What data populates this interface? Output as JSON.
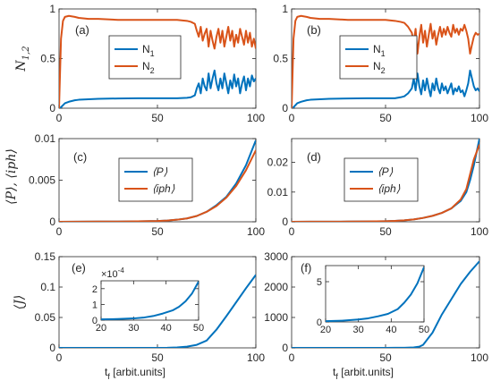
{
  "colors": {
    "blue": "#0072BD",
    "orange": "#D95319",
    "axis": "#262626"
  },
  "chart_data": [
    {
      "id": "a",
      "panel_label": "(a)",
      "type": "line",
      "ylabel": "N1,2",
      "ylabel_main": "N",
      "ylabel_sub": "1,2",
      "xlim": [
        0,
        100
      ],
      "ylim": [
        0,
        1
      ],
      "xticks": [
        0,
        50,
        100
      ],
      "xtick_labels": [
        "0",
        "50",
        "100"
      ],
      "yticks": [
        0,
        0.5,
        1
      ],
      "ytick_labels": [
        "0",
        "0.5",
        "1"
      ],
      "legend_position": "top-center",
      "series": [
        {
          "name": "N1",
          "name_main": "N",
          "name_sub": "1",
          "color": "#0072BD",
          "x": [
            0,
            1,
            2,
            3,
            5,
            8,
            10,
            15,
            20,
            30,
            40,
            50,
            60,
            65,
            67,
            69,
            70,
            71,
            72,
            73,
            74,
            75,
            76,
            77,
            78,
            79,
            80,
            81,
            82,
            83,
            84,
            85,
            86,
            87,
            88,
            89,
            90,
            91,
            92,
            93,
            94,
            95,
            96,
            97,
            98,
            99,
            100
          ],
          "y": [
            0,
            0.01,
            0.03,
            0.05,
            0.065,
            0.08,
            0.085,
            0.09,
            0.095,
            0.098,
            0.1,
            0.1,
            0.1,
            0.105,
            0.11,
            0.13,
            0.2,
            0.25,
            0.15,
            0.3,
            0.22,
            0.18,
            0.35,
            0.2,
            0.3,
            0.38,
            0.25,
            0.18,
            0.3,
            0.2,
            0.35,
            0.25,
            0.15,
            0.28,
            0.2,
            0.34,
            0.22,
            0.3,
            0.15,
            0.25,
            0.32,
            0.18,
            0.3,
            0.22,
            0.33,
            0.27,
            0.3
          ]
        },
        {
          "name": "N2",
          "name_main": "N",
          "name_sub": "2",
          "color": "#D95319",
          "x": [
            0,
            1,
            2,
            3,
            5,
            8,
            10,
            15,
            20,
            30,
            40,
            50,
            60,
            65,
            67,
            69,
            70,
            71,
            72,
            73,
            74,
            75,
            76,
            77,
            78,
            79,
            80,
            81,
            82,
            83,
            84,
            85,
            86,
            87,
            88,
            89,
            90,
            91,
            92,
            93,
            94,
            95,
            96,
            97,
            98,
            99,
            100
          ],
          "y": [
            0,
            0.7,
            0.88,
            0.92,
            0.93,
            0.92,
            0.91,
            0.9,
            0.9,
            0.89,
            0.89,
            0.89,
            0.89,
            0.88,
            0.87,
            0.85,
            0.78,
            0.72,
            0.82,
            0.68,
            0.75,
            0.8,
            0.62,
            0.78,
            0.68,
            0.6,
            0.72,
            0.8,
            0.66,
            0.78,
            0.62,
            0.72,
            0.82,
            0.68,
            0.78,
            0.62,
            0.74,
            0.66,
            0.8,
            0.72,
            0.64,
            0.78,
            0.66,
            0.76,
            0.62,
            0.7,
            0.6
          ]
        }
      ]
    },
    {
      "id": "b",
      "panel_label": "(b)",
      "type": "line",
      "ylabel": "",
      "xlim": [
        0,
        100
      ],
      "ylim": [
        0,
        1
      ],
      "xticks": [
        0,
        50,
        100
      ],
      "xtick_labels": [
        "0",
        "50",
        "100"
      ],
      "yticks": [
        0,
        0.5,
        1
      ],
      "ytick_labels": [
        "0",
        "0.5",
        "1"
      ],
      "legend_position": "top-center",
      "series": [
        {
          "name": "N1",
          "name_main": "N",
          "name_sub": "1",
          "color": "#0072BD",
          "x": [
            0,
            1,
            2,
            3,
            5,
            8,
            10,
            15,
            20,
            30,
            40,
            50,
            55,
            58,
            60,
            62,
            64,
            65,
            66,
            67,
            68,
            69,
            70,
            71,
            72,
            73,
            74,
            75,
            76,
            77,
            78,
            79,
            80,
            81,
            82,
            83,
            84,
            85,
            86,
            87,
            88,
            89,
            90,
            91,
            92,
            93,
            94,
            95,
            96,
            97,
            98,
            99,
            100
          ],
          "y": [
            0,
            0.01,
            0.03,
            0.05,
            0.065,
            0.08,
            0.085,
            0.09,
            0.095,
            0.098,
            0.1,
            0.1,
            0.1,
            0.11,
            0.12,
            0.15,
            0.2,
            0.3,
            0.18,
            0.35,
            0.22,
            0.14,
            0.28,
            0.18,
            0.3,
            0.2,
            0.12,
            0.25,
            0.18,
            0.3,
            0.2,
            0.15,
            0.25,
            0.18,
            0.22,
            0.15,
            0.2,
            0.25,
            0.14,
            0.2,
            0.17,
            0.22,
            0.16,
            0.18,
            0.12,
            0.18,
            0.25,
            0.38,
            0.3,
            0.22,
            0.18,
            0.2,
            0.17
          ]
        },
        {
          "name": "N2",
          "name_main": "N",
          "name_sub": "2",
          "color": "#D95319",
          "x": [
            0,
            1,
            2,
            3,
            5,
            8,
            10,
            15,
            20,
            30,
            40,
            50,
            55,
            58,
            60,
            62,
            64,
            65,
            66,
            67,
            68,
            69,
            70,
            71,
            72,
            73,
            74,
            75,
            76,
            77,
            78,
            79,
            80,
            81,
            82,
            83,
            84,
            85,
            86,
            87,
            88,
            89,
            90,
            91,
            92,
            93,
            94,
            95,
            96,
            97,
            98,
            99,
            100
          ],
          "y": [
            0,
            0.7,
            0.88,
            0.92,
            0.93,
            0.92,
            0.91,
            0.9,
            0.9,
            0.89,
            0.89,
            0.89,
            0.88,
            0.87,
            0.86,
            0.82,
            0.76,
            0.66,
            0.8,
            0.55,
            0.72,
            0.84,
            0.66,
            0.78,
            0.62,
            0.74,
            0.85,
            0.7,
            0.78,
            0.64,
            0.74,
            0.82,
            0.72,
            0.8,
            0.74,
            0.82,
            0.76,
            0.72,
            0.84,
            0.76,
            0.8,
            0.74,
            0.8,
            0.78,
            0.84,
            0.78,
            0.7,
            0.55,
            0.64,
            0.72,
            0.76,
            0.74,
            0.75
          ]
        }
      ]
    },
    {
      "id": "c",
      "panel_label": "(c)",
      "type": "line",
      "ylabel": "⟨P⟩, ⟨iph⟩",
      "xlim": [
        0,
        100
      ],
      "ylim": [
        0,
        0.01
      ],
      "xticks": [
        0,
        50,
        100
      ],
      "xtick_labels": [
        "0",
        "50",
        "100"
      ],
      "yticks": [
        0,
        0.005,
        0.01
      ],
      "ytick_labels": [
        "0",
        "0.005",
        "0.01"
      ],
      "legend_position": "top-center",
      "series": [
        {
          "name": "⟨P⟩",
          "color": "#0072BD",
          "x": [
            0,
            10,
            20,
            30,
            40,
            50,
            55,
            60,
            65,
            70,
            75,
            80,
            85,
            90,
            95,
            100
          ],
          "y": [
            0,
            1e-05,
            2e-05,
            3e-05,
            6e-05,
            0.0001,
            0.00015,
            0.00025,
            0.0004,
            0.0007,
            0.0012,
            0.002,
            0.003,
            0.0046,
            0.0068,
            0.0098
          ]
        },
        {
          "name": "⟨iph⟩",
          "color": "#D95319",
          "x": [
            0,
            10,
            20,
            30,
            40,
            50,
            55,
            60,
            65,
            70,
            75,
            80,
            85,
            90,
            95,
            100
          ],
          "y": [
            0,
            1e-05,
            2e-05,
            3e-05,
            6e-05,
            0.0001,
            0.00015,
            0.00025,
            0.0004,
            0.0007,
            0.0012,
            0.0019,
            0.0029,
            0.0043,
            0.0062,
            0.0086
          ]
        }
      ]
    },
    {
      "id": "d",
      "panel_label": "(d)",
      "type": "line",
      "ylabel": "",
      "xlim": [
        0,
        100
      ],
      "ylim": [
        0,
        0.028
      ],
      "xticks": [
        0,
        50,
        100
      ],
      "xtick_labels": [
        "0",
        "50",
        "100"
      ],
      "yticks": [
        0,
        0.01,
        0.02
      ],
      "ytick_labels": [
        "0",
        "0.01",
        "0.02"
      ],
      "legend_position": "top-center",
      "series": [
        {
          "name": "⟨P⟩",
          "color": "#0072BD",
          "x": [
            0,
            10,
            20,
            30,
            40,
            50,
            55,
            60,
            65,
            70,
            75,
            80,
            85,
            90,
            93,
            95,
            97,
            100
          ],
          "y": [
            0,
            2e-05,
            4e-05,
            6e-05,
            0.0001,
            0.0002,
            0.0003,
            0.0005,
            0.0008,
            0.0013,
            0.002,
            0.003,
            0.0045,
            0.007,
            0.01,
            0.014,
            0.019,
            0.028
          ]
        },
        {
          "name": "⟨iph⟩",
          "color": "#D95319",
          "x": [
            0,
            10,
            20,
            30,
            40,
            50,
            55,
            60,
            65,
            70,
            75,
            80,
            85,
            90,
            93,
            95,
            97,
            100
          ],
          "y": [
            0,
            2e-05,
            4e-05,
            6e-05,
            0.0001,
            0.0002,
            0.0003,
            0.0005,
            0.0008,
            0.0013,
            0.002,
            0.003,
            0.0045,
            0.0075,
            0.011,
            0.016,
            0.021,
            0.026
          ]
        }
      ]
    },
    {
      "id": "e",
      "panel_label": "(e)",
      "type": "line",
      "ylabel": "⟨J⟩",
      "xlabel": "tf [arbit.units]",
      "xlabel_main": "t",
      "xlabel_sub": "f",
      "xlabel_rest": " [arbit.units]",
      "xlim": [
        0,
        100
      ],
      "ylim": [
        0,
        0.15
      ],
      "xticks": [
        0,
        50,
        100
      ],
      "xtick_labels": [
        "0",
        "50",
        "100"
      ],
      "yticks": [
        0,
        0.05,
        0.1,
        0.15
      ],
      "ytick_labels": [
        "0",
        "0.05",
        "0.1",
        "0.15"
      ],
      "series": [
        {
          "name": "",
          "color": "#0072BD",
          "x": [
            0,
            10,
            20,
            30,
            40,
            50,
            55,
            60,
            65,
            70,
            75,
            80,
            85,
            90,
            95,
            100
          ],
          "y": [
            0,
            0,
            0,
            0,
            0,
            0,
            0.0002,
            0.0008,
            0.002,
            0.005,
            0.012,
            0.03,
            0.052,
            0.075,
            0.098,
            0.12
          ]
        }
      ],
      "inset": {
        "xlim": [
          20,
          50
        ],
        "ylim": [
          0,
          2.5
        ],
        "xticks": [
          20,
          30,
          40,
          50
        ],
        "xtick_labels": [
          "20",
          "30",
          "40",
          "50"
        ],
        "yticks": [
          0,
          1,
          2
        ],
        "ytick_labels": [
          "0",
          "1",
          "2"
        ],
        "exponent_label": "×10",
        "exponent_power": "-4",
        "x": [
          20,
          25,
          30,
          33,
          36,
          39,
          42,
          44,
          46,
          48,
          50
        ],
        "y": [
          0.05,
          0.07,
          0.11,
          0.16,
          0.26,
          0.42,
          0.62,
          0.85,
          1.2,
          1.7,
          2.45
        ]
      }
    },
    {
      "id": "f",
      "panel_label": "(f)",
      "type": "line",
      "ylabel": "",
      "xlabel": "tf [arbit.units]",
      "xlabel_main": "t",
      "xlabel_sub": "f",
      "xlabel_rest": " [arbit.units]",
      "xlim": [
        0,
        100
      ],
      "ylim": [
        0,
        3000
      ],
      "xticks": [
        0,
        50,
        100
      ],
      "xtick_labels": [
        "0",
        "50",
        "100"
      ],
      "yticks": [
        0,
        1000,
        2000,
        3000
      ],
      "ytick_labels": [
        "0",
        "1000",
        "2000",
        "3000"
      ],
      "series": [
        {
          "name": "",
          "color": "#0072BD",
          "x": [
            0,
            10,
            20,
            30,
            40,
            50,
            55,
            60,
            65,
            68,
            70,
            75,
            80,
            85,
            90,
            95,
            100
          ],
          "y": [
            0,
            0,
            0,
            0,
            0,
            0,
            2,
            5,
            15,
            40,
            100,
            500,
            1100,
            1600,
            2100,
            2500,
            2850
          ]
        }
      ],
      "inset": {
        "xlim": [
          20,
          50
        ],
        "ylim": [
          0,
          7
        ],
        "xticks": [
          20,
          30,
          40,
          50
        ],
        "xtick_labels": [
          "20",
          "30",
          "40",
          "50"
        ],
        "yticks": [
          0,
          5
        ],
        "ytick_labels": [
          "0",
          "5"
        ],
        "x": [
          20,
          25,
          30,
          33,
          36,
          39,
          42,
          44,
          46,
          48,
          50
        ],
        "y": [
          0.1,
          0.15,
          0.3,
          0.45,
          0.7,
          1.0,
          1.6,
          2.4,
          3.4,
          4.8,
          6.8
        ]
      }
    }
  ]
}
